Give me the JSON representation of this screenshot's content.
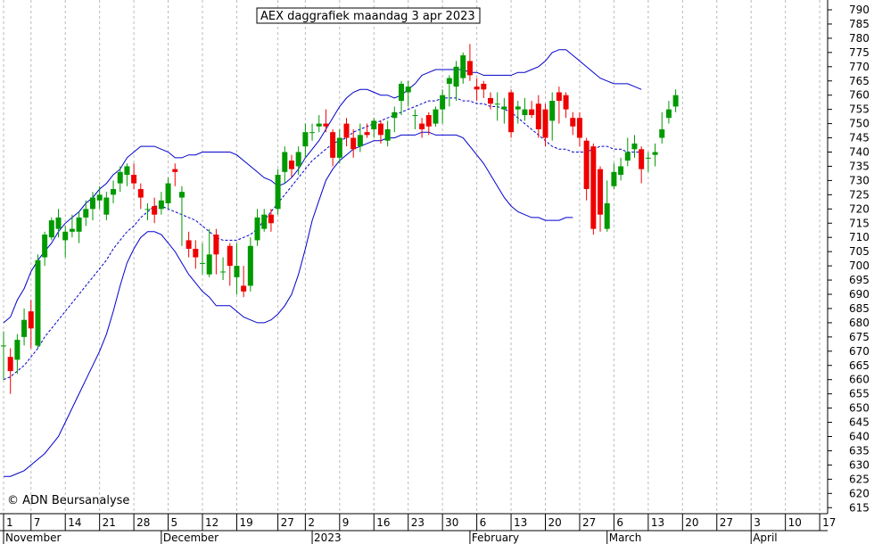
{
  "title": "AEX daggrafiek maandag 3 apr 2023",
  "watermark": "© ADN Beursanalyse",
  "colors": {
    "background": "#ffffff",
    "up_candle": "#009900",
    "down_candle": "#ee0000",
    "band": "#0000cc",
    "grid": "#bbbbbb"
  },
  "chart_data": {
    "type": "candlestick",
    "title": "AEX daggrafiek maandag 3 apr 2023",
    "ylim": [
      610,
      792
    ],
    "y_ticks": [
      615,
      620,
      625,
      630,
      635,
      640,
      645,
      650,
      655,
      660,
      665,
      670,
      675,
      680,
      685,
      690,
      695,
      700,
      705,
      710,
      715,
      720,
      725,
      730,
      735,
      740,
      745,
      750,
      755,
      760,
      765,
      770,
      775,
      780,
      785,
      790
    ],
    "y_axis_position": "right",
    "grid": "vertical dotted lines at week starts",
    "x_ticks": [
      "1",
      "7",
      "14",
      "21",
      "28",
      "5",
      "12",
      "19",
      "27",
      "2",
      "9",
      "16",
      "23",
      "30",
      "6",
      "13",
      "20",
      "27",
      "6",
      "13",
      "20",
      "27",
      "3",
      "10",
      "17"
    ],
    "x_tick_day_index": [
      0,
      4,
      9,
      14,
      19,
      24,
      29,
      34,
      40,
      44,
      49,
      54,
      59,
      64,
      69,
      74,
      79,
      84,
      89,
      94,
      99,
      104,
      109,
      114,
      119
    ],
    "months": [
      {
        "label": "November",
        "day_index": 0
      },
      {
        "label": "December",
        "day_index": 23
      },
      {
        "label": "2023",
        "day_index": 45
      },
      {
        "label": "February",
        "day_index": 68
      },
      {
        "label": "March",
        "day_index": 88
      },
      {
        "label": "April",
        "day_index": 109
      }
    ],
    "candles": [
      [
        672,
        672,
        677,
        660
      ],
      [
        668,
        663,
        671,
        655
      ],
      [
        667,
        674,
        676,
        662
      ],
      [
        675,
        681,
        685,
        672
      ],
      [
        684,
        678,
        688,
        671
      ],
      [
        672,
        702,
        704,
        671
      ],
      [
        703,
        711,
        712,
        700
      ],
      [
        710,
        716,
        717,
        709
      ],
      [
        713,
        717,
        720,
        710
      ],
      [
        709,
        712,
        714,
        703
      ],
      [
        712,
        713,
        718,
        710
      ],
      [
        712,
        717,
        719,
        708
      ],
      [
        717,
        720,
        723,
        714
      ],
      [
        720,
        724,
        726,
        716
      ],
      [
        723,
        725,
        728,
        720
      ],
      [
        718,
        724,
        726,
        716
      ],
      [
        725,
        727,
        730,
        722
      ],
      [
        729,
        733,
        735,
        726
      ],
      [
        732,
        735,
        736,
        728
      ],
      [
        732,
        729,
        736,
        727
      ],
      [
        727,
        724,
        729,
        720
      ],
      [
        720,
        720,
        722,
        716
      ],
      [
        721,
        718,
        724,
        715
      ],
      [
        720,
        723,
        726,
        718
      ],
      [
        722,
        729,
        731,
        720
      ],
      [
        734,
        733,
        736,
        728
      ],
      [
        724,
        726,
        728,
        707
      ],
      [
        709,
        706,
        712,
        703
      ],
      [
        706,
        703,
        709,
        699
      ],
      [
        701,
        701,
        708,
        697
      ],
      [
        697,
        704,
        713,
        696
      ],
      [
        711,
        704,
        713,
        697
      ],
      [
        698,
        698,
        703,
        695
      ],
      [
        707,
        700,
        708,
        693
      ],
      [
        696,
        700,
        708,
        690
      ],
      [
        693,
        691,
        700,
        689
      ],
      [
        693,
        707,
        710,
        691
      ],
      [
        709,
        717,
        720,
        707
      ],
      [
        713,
        718,
        720,
        712
      ],
      [
        718,
        715,
        720,
        712
      ],
      [
        720,
        732,
        734,
        718
      ],
      [
        733,
        740,
        742,
        729
      ],
      [
        737,
        734,
        739,
        731
      ],
      [
        735,
        740,
        742,
        732
      ],
      [
        742,
        747,
        750,
        738
      ],
      [
        747,
        747,
        750,
        744
      ],
      [
        749,
        750,
        753,
        747
      ],
      [
        750,
        749,
        755,
        747
      ],
      [
        747,
        738,
        748,
        735
      ],
      [
        738,
        745,
        748,
        736
      ],
      [
        750,
        745,
        752,
        742
      ],
      [
        745,
        741,
        748,
        738
      ],
      [
        742,
        746,
        750,
        740
      ],
      [
        747,
        746,
        750,
        745
      ],
      [
        748,
        751,
        752,
        745
      ],
      [
        750,
        746,
        751,
        743
      ],
      [
        744,
        748,
        751,
        742
      ],
      [
        752,
        754,
        756,
        747
      ],
      [
        758,
        764,
        765,
        753
      ],
      [
        761,
        763,
        765,
        756
      ],
      [
        753,
        753,
        755,
        748
      ],
      [
        750,
        748,
        752,
        745
      ],
      [
        753,
        749,
        754,
        746
      ],
      [
        750,
        755,
        756,
        749
      ],
      [
        755,
        760,
        762,
        750
      ],
      [
        764,
        766,
        767,
        756
      ],
      [
        763,
        770,
        772,
        758
      ],
      [
        766,
        774,
        775,
        764
      ],
      [
        772,
        767,
        778,
        765
      ],
      [
        763,
        762,
        766,
        758
      ],
      [
        764,
        762,
        765,
        759
      ],
      [
        759,
        757,
        761,
        755
      ],
      [
        757,
        757,
        761,
        751
      ],
      [
        755,
        756,
        759,
        750
      ],
      [
        761,
        747,
        762,
        745
      ],
      [
        755,
        756,
        758,
        750
      ],
      [
        753,
        755,
        759,
        751
      ],
      [
        755,
        753,
        758,
        752
      ],
      [
        757,
        748,
        760,
        745
      ],
      [
        755,
        745,
        757,
        742
      ],
      [
        751,
        758,
        761,
        744
      ],
      [
        761,
        758,
        763,
        750
      ],
      [
        760,
        755,
        761,
        752
      ],
      [
        752,
        749,
        754,
        746
      ],
      [
        752,
        745,
        754,
        742
      ],
      [
        744,
        727,
        745,
        723
      ],
      [
        742,
        713,
        743,
        711
      ],
      [
        734,
        718,
        735,
        712
      ],
      [
        713,
        722,
        730,
        712
      ],
      [
        728,
        733,
        736,
        727
      ],
      [
        732,
        735,
        738,
        730
      ],
      [
        737,
        740,
        745,
        735
      ],
      [
        741,
        743,
        746,
        738
      ],
      [
        741,
        734,
        742,
        729
      ],
      [
        738,
        738,
        740,
        733
      ],
      [
        739,
        740,
        743,
        735
      ],
      [
        745,
        748,
        754,
        743
      ],
      [
        752,
        755,
        758,
        750
      ],
      [
        756,
        760,
        762,
        754
      ]
    ],
    "upper_band": [
      680,
      682,
      688,
      692,
      698,
      702,
      705,
      708,
      712,
      715,
      717,
      719,
      722,
      724,
      727,
      729,
      732,
      734,
      738,
      740,
      742,
      742,
      742,
      741,
      740,
      738,
      738,
      739,
      739,
      740,
      740,
      740,
      740,
      740,
      739,
      737,
      735,
      733,
      731,
      730,
      728,
      729,
      731,
      734,
      738,
      741,
      744,
      748,
      752,
      756,
      759,
      761,
      762,
      762,
      761,
      760,
      760,
      759,
      760,
      762,
      764,
      767,
      768,
      769,
      769,
      769,
      769,
      769,
      768,
      768,
      767,
      767,
      767,
      767,
      767,
      768,
      768,
      769,
      770,
      772,
      775,
      776,
      776,
      774,
      772,
      770,
      768,
      766,
      765,
      764,
      764,
      764,
      763,
      762
    ],
    "middle_band": [
      660,
      661,
      663,
      665,
      668,
      671,
      675,
      678,
      681,
      684,
      687,
      690,
      693,
      696,
      699,
      702,
      706,
      709,
      712,
      714,
      717,
      719,
      721,
      721,
      720,
      719,
      718,
      717,
      716,
      714,
      712,
      710,
      709,
      709,
      709,
      710,
      711,
      713,
      716,
      719,
      722,
      725,
      728,
      731,
      734,
      737,
      739,
      741,
      743,
      744,
      745,
      747,
      748,
      749,
      750,
      751,
      752,
      753,
      754,
      755,
      756,
      757,
      758,
      758,
      759,
      759,
      759,
      758,
      758,
      757,
      757,
      756,
      756,
      755,
      754,
      752,
      750,
      748,
      746,
      744,
      742,
      741,
      741,
      740,
      740,
      740,
      741,
      742,
      742,
      741,
      741,
      740,
      740,
      740
    ],
    "lower_band": [
      626,
      626,
      627,
      628,
      630,
      632,
      634,
      637,
      640,
      645,
      650,
      655,
      660,
      665,
      670,
      676,
      684,
      693,
      701,
      706,
      710,
      712,
      712,
      711,
      708,
      705,
      701,
      697,
      694,
      691,
      689,
      686,
      686,
      686,
      684,
      682,
      681,
      680,
      680,
      681,
      683,
      686,
      690,
      697,
      706,
      716,
      723,
      730,
      734,
      737,
      739,
      741,
      742,
      743,
      744,
      744,
      745,
      745,
      746,
      746,
      746,
      747,
      747,
      746,
      746,
      746,
      746,
      745,
      742,
      739,
      736,
      732,
      728,
      724,
      721,
      719,
      718,
      717,
      717,
      716,
      716,
      716,
      717,
      717
    ]
  }
}
